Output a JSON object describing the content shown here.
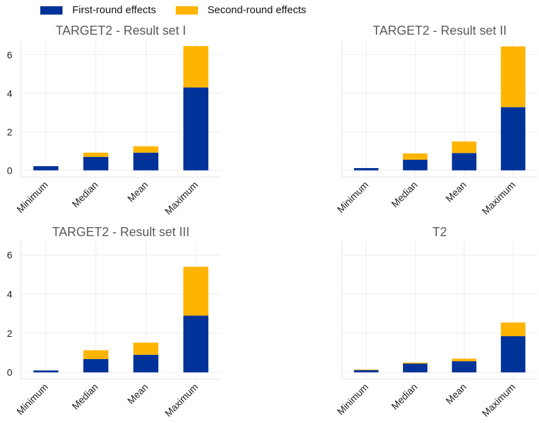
{
  "legend": {
    "first_label": "First-round effects",
    "second_label": "Second-round effects"
  },
  "colors": {
    "first": "#003399",
    "second": "#ffb400"
  },
  "chart_data": [
    {
      "type": "bar",
      "stacked": true,
      "title": "TARGET2 - Result set I",
      "categories": [
        "Minimum",
        "Median",
        "Mean",
        "Maximum"
      ],
      "series": [
        {
          "name": "First-round effects",
          "values": [
            0.22,
            0.7,
            0.92,
            4.3
          ]
        },
        {
          "name": "Second-round effects",
          "values": [
            0.0,
            0.22,
            0.33,
            2.15
          ]
        }
      ],
      "yticks": [
        0,
        2,
        4,
        6
      ],
      "ylim": [
        -0.35,
        6.75
      ],
      "grid": true
    },
    {
      "type": "bar",
      "stacked": true,
      "title": "TARGET2 - Result set II",
      "categories": [
        "Minimum",
        "Median",
        "Mean",
        "Maximum"
      ],
      "series": [
        {
          "name": "First-round effects",
          "values": [
            0.12,
            0.55,
            0.9,
            3.28
          ]
        },
        {
          "name": "Second-round effects",
          "values": [
            0.0,
            0.33,
            0.6,
            3.15
          ]
        }
      ],
      "yticks": [
        0,
        2,
        4,
        6
      ],
      "ylim": [
        -0.35,
        6.75
      ],
      "grid": true
    },
    {
      "type": "bar",
      "stacked": true,
      "title": "TARGET2 - Result set III",
      "categories": [
        "Minimum",
        "Median",
        "Mean",
        "Maximum"
      ],
      "series": [
        {
          "name": "First-round effects",
          "values": [
            0.1,
            0.68,
            0.9,
            2.9
          ]
        },
        {
          "name": "Second-round effects",
          "values": [
            0.0,
            0.45,
            0.62,
            2.5
          ]
        }
      ],
      "yticks": [
        0,
        2,
        4,
        6
      ],
      "ylim": [
        -0.35,
        6.75
      ],
      "grid": true
    },
    {
      "type": "bar",
      "stacked": true,
      "title": "T2",
      "categories": [
        "Minimum",
        "Median",
        "Mean",
        "Maximum"
      ],
      "series": [
        {
          "name": "First-round effects",
          "values": [
            0.12,
            0.45,
            0.57,
            1.85
          ]
        },
        {
          "name": "Second-round effects",
          "values": [
            0.03,
            0.05,
            0.13,
            0.7
          ]
        }
      ],
      "yticks": [
        0,
        2,
        4,
        6
      ],
      "ylim": [
        -0.35,
        6.75
      ],
      "grid": true
    }
  ]
}
